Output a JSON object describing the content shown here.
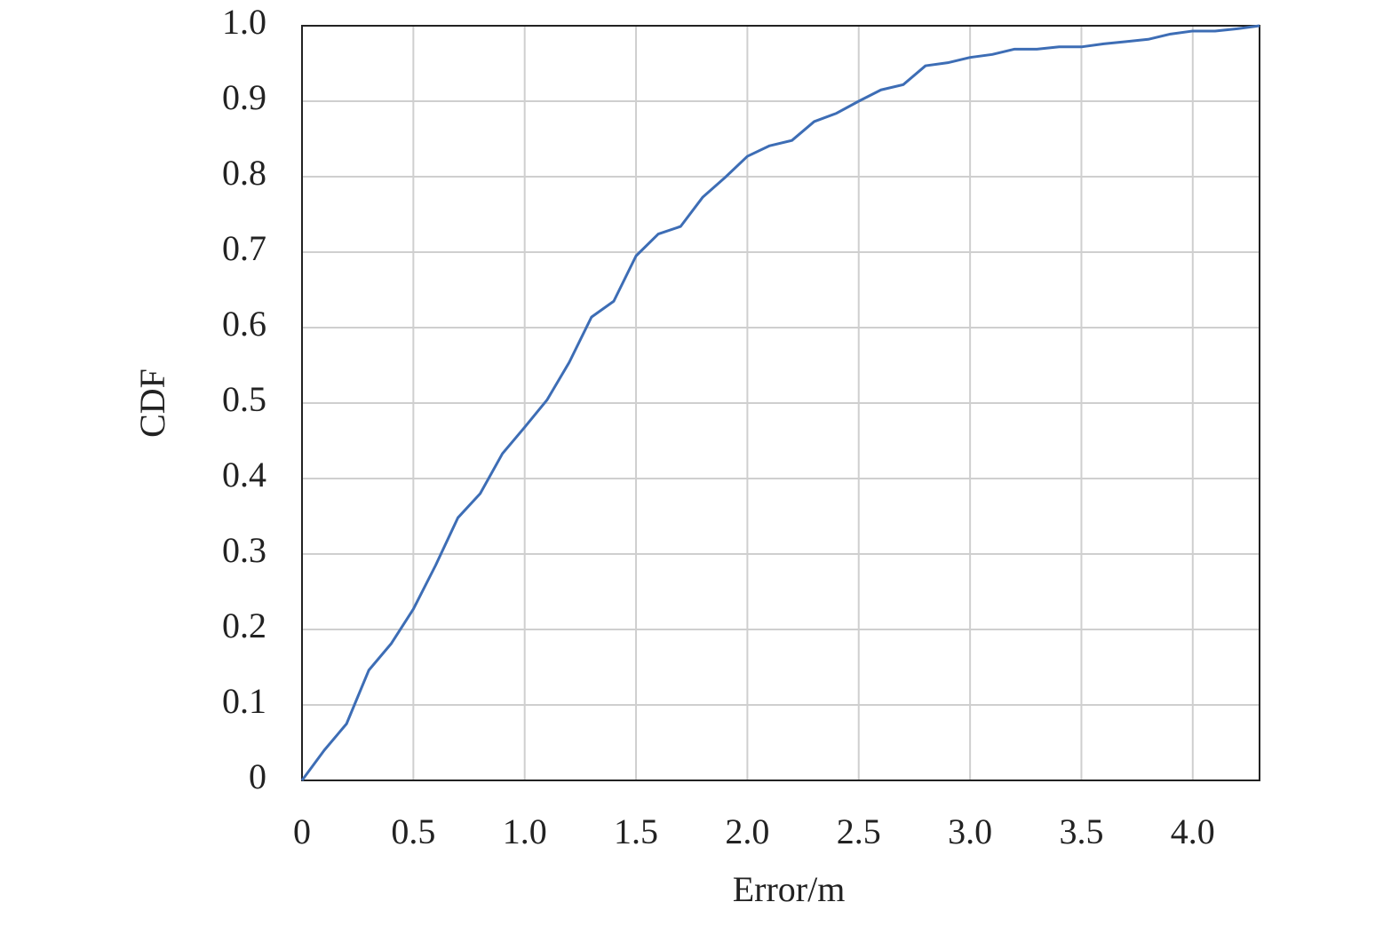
{
  "chart_data": {
    "type": "line",
    "xlabel": "Error/m",
    "ylabel": "CDF",
    "x": [
      0,
      0.1,
      0.2,
      0.3,
      0.4,
      0.5,
      0.6,
      0.7,
      0.8,
      0.9,
      1.0,
      1.1,
      1.2,
      1.3,
      1.4,
      1.5,
      1.6,
      1.7,
      1.8,
      1.9,
      2.0,
      2.1,
      2.2,
      2.3,
      2.4,
      2.5,
      2.6,
      2.7,
      2.8,
      2.9,
      3.0,
      3.1,
      3.2,
      3.3,
      3.4,
      3.5,
      3.6,
      3.7,
      3.8,
      3.9,
      4.0,
      4.1,
      4.2,
      4.3
    ],
    "series": [
      {
        "color": "#3d6db5",
        "values": [
          0,
          0.04,
          0.075,
          0.146,
          0.181,
          0.227,
          0.285,
          0.348,
          0.38,
          0.433,
          0.468,
          0.504,
          0.554,
          0.614,
          0.635,
          0.695,
          0.724,
          0.734,
          0.773,
          0.799,
          0.827,
          0.841,
          0.848,
          0.873,
          0.884,
          0.9,
          0.915,
          0.922,
          0.947,
          0.951,
          0.958,
          0.962,
          0.969,
          0.969,
          0.972,
          0.972,
          0.976,
          0.979,
          0.982,
          0.989,
          0.993,
          0.993,
          0.996,
          1.0
        ]
      }
    ],
    "xlim": [
      0,
      4.3
    ],
    "ylim": [
      0,
      1.0
    ],
    "xticks": [
      0,
      0.5,
      {
        "value": 1.0,
        "label": "1.0"
      },
      1.5,
      {
        "value": 2.0,
        "label": "2.0"
      },
      2.5,
      {
        "value": 3.0,
        "label": "3.0"
      },
      3.5,
      {
        "value": 4.0,
        "label": "4.0"
      }
    ],
    "yticks": [
      0,
      0.1,
      0.2,
      0.3,
      0.4,
      0.5,
      0.6,
      0.7,
      0.8,
      0.9,
      {
        "value": 1.0,
        "label": "1.0"
      }
    ],
    "grid": true
  }
}
